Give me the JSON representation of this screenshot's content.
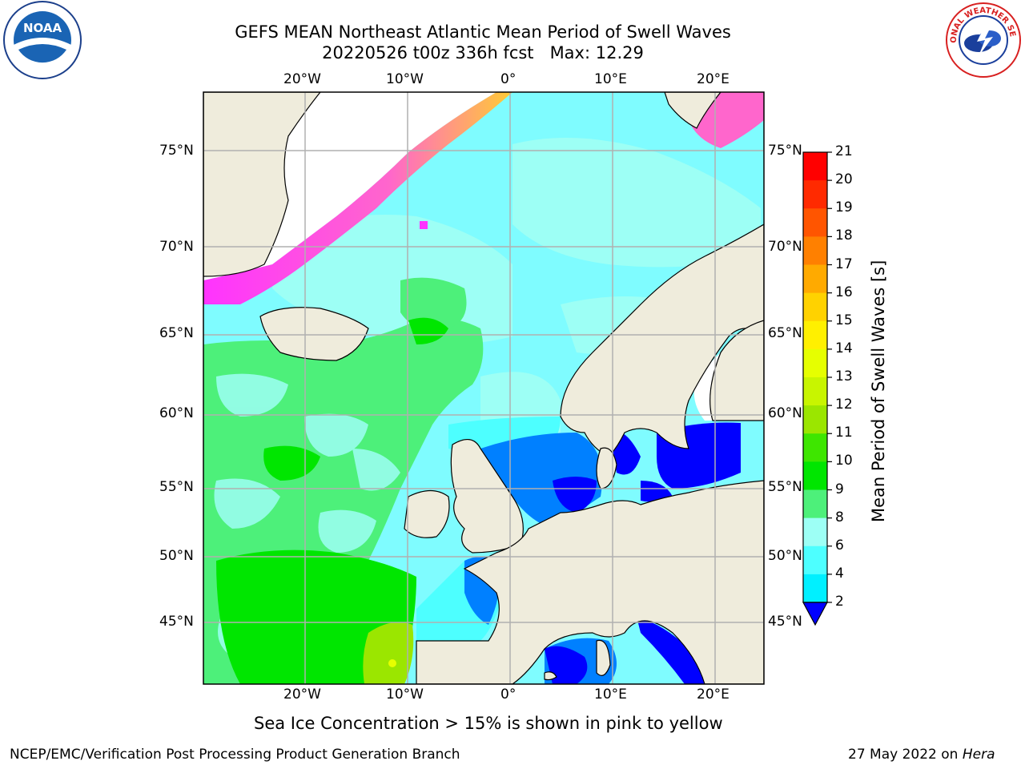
{
  "title": {
    "line1": "GEFS MEAN Northeast Atlantic Mean Period of Swell Waves",
    "line2": "20220526 t00z 336h fcst   Max: 12.29"
  },
  "map": {
    "lon_ticks_top": [
      "20°W",
      "10°W",
      "0°",
      "10°E",
      "20°E"
    ],
    "lon_ticks_bottom": [
      "20°W",
      "10°W",
      "0°",
      "10°E",
      "20°E"
    ],
    "lat_ticks_left": [
      "75°N",
      "70°N",
      "65°N",
      "60°N",
      "55°N",
      "50°N",
      "45°N"
    ],
    "lat_ticks_right": [
      "75°N",
      "70°N",
      "65°N",
      "60°N",
      "55°N",
      "50°N",
      "45°N"
    ],
    "colors": {
      "land": "#efecdc",
      "white_area": "#ffffff",
      "gridline": "#b0b0b0"
    }
  },
  "colorbar": {
    "label": "Mean Period of Swell Waves [s]",
    "ticks": [
      "21",
      "20",
      "19",
      "18",
      "17",
      "16",
      "15",
      "14",
      "13",
      "12",
      "11",
      "10",
      "9",
      "8",
      "6",
      "4",
      "2"
    ],
    "colors": [
      "#ff0000",
      "#ff2a00",
      "#ff5500",
      "#ff8000",
      "#ffaa00",
      "#ffd200",
      "#fff000",
      "#e6ff00",
      "#c8f500",
      "#9be600",
      "#3ee600",
      "#00e600",
      "#4df07a",
      "#9dfff5",
      "#4dffff",
      "#00f0ff",
      "#0080ff",
      "#0000ff"
    ],
    "extend_color": "#0000ff"
  },
  "caption": "Sea Ice Concentration > 15% is shown in pink to yellow",
  "footer": {
    "left": "NCEP/EMC/Verification Post Processing Product Generation Branch",
    "right_date": "27 May 2022 on ",
    "right_machine": "Hera"
  },
  "logos": {
    "noaa_text": "NOAA",
    "nws_text": "NATIONAL WEATHER SERVICE"
  }
}
